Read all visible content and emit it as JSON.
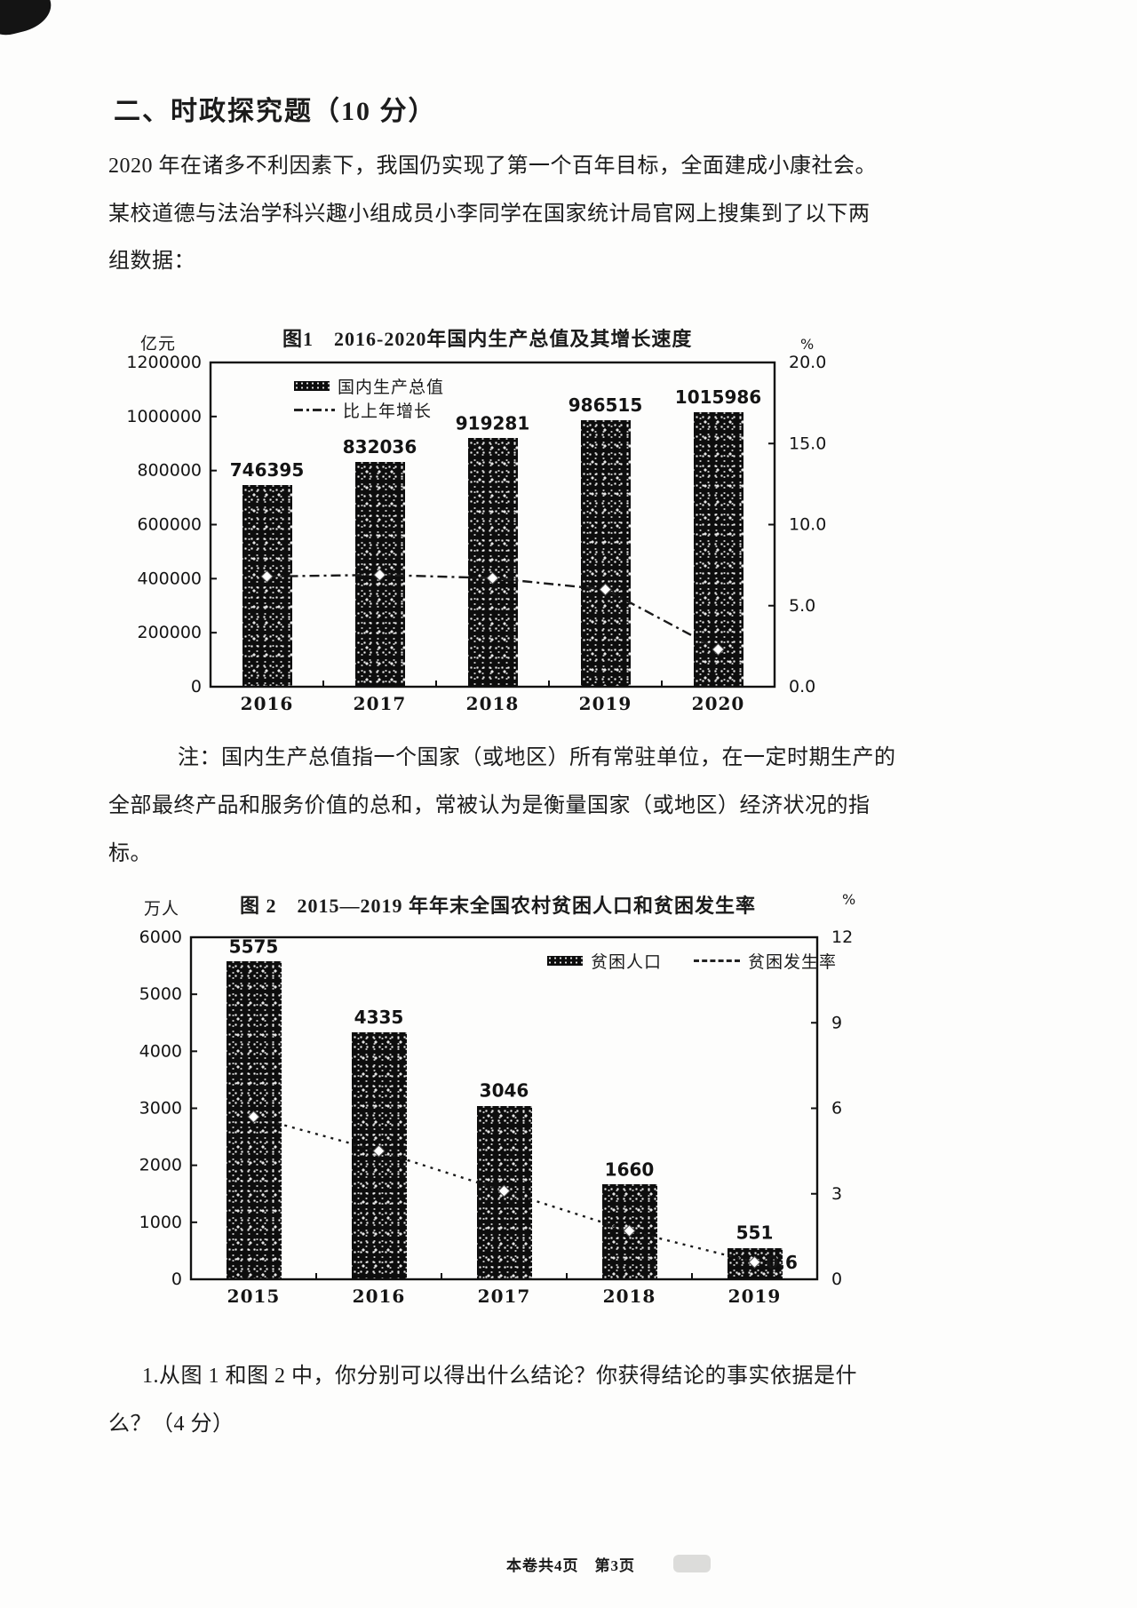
{
  "heading": "二、时政探究题（10 分）",
  "intro": {
    "line1": "2020 年在诸多不利因素下，我国仍实现了第一个百年目标，全面建成小康社会。",
    "line2": "某校道德与法治学科兴趣小组成员小李同学在国家统计局官网上搜集到了以下两",
    "line3": "组数据："
  },
  "note": {
    "line1": "注：国内生产总值指一个国家（或地区）所有常驻单位，在一定时期生产的",
    "line2": "全部最终产品和服务价值的总和，常被认为是衡量国家（或地区）经济状况的指",
    "line3": "标。"
  },
  "question": {
    "line1": "1.从图 1 和图 2 中，你分别可以得出什么结论？你获得结论的事实依据是什",
    "line2": "么？（4 分）"
  },
  "footer": "本卷共4页　第3页",
  "colors": {
    "ink": "#1b1b1b",
    "paper": "#fdfdfc"
  },
  "chart_data": [
    {
      "type": "bar",
      "title": "图1　2016-2020年国内生产总值及其增长速度",
      "categories": [
        "2016",
        "2017",
        "2018",
        "2019",
        "2020"
      ],
      "series": [
        {
          "name": "国内生产总值",
          "type": "bar",
          "axis": "left",
          "values": [
            746395,
            832036,
            919281,
            986515,
            1015986
          ],
          "labels": [
            "746395",
            "832036",
            "919281",
            "986515",
            "1015986"
          ]
        },
        {
          "name": "比上年增长",
          "type": "line",
          "axis": "right",
          "values": [
            6.8,
            6.9,
            6.7,
            6.0,
            2.3
          ]
        }
      ],
      "left_axis": {
        "unit": "亿元",
        "max": 1200000,
        "ticks": [
          "1200000",
          "1000000",
          "800000",
          "600000",
          "400000",
          "200000",
          "0"
        ]
      },
      "right_axis": {
        "unit": "%",
        "max": 20,
        "ticks": [
          "20.0",
          "15.0",
          "10.0",
          "5.0",
          "0.0"
        ]
      },
      "legend": [
        "国内生产总值",
        "比上年增长"
      ],
      "legend_position": "top-left",
      "grid": false
    },
    {
      "type": "bar",
      "title": "图 2　2015—2019 年年末全国农村贫困人口和贫困发生率",
      "categories": [
        "2015",
        "2016",
        "2017",
        "2018",
        "2019"
      ],
      "series": [
        {
          "name": "贫困人口",
          "type": "bar",
          "axis": "left",
          "values": [
            5575,
            4335,
            3046,
            1660,
            551
          ],
          "labels": [
            "5575",
            "4335",
            "3046",
            "1660",
            "551"
          ]
        },
        {
          "name": "贫困发生率",
          "type": "line",
          "axis": "right",
          "values": [
            5.7,
            4.5,
            3.1,
            1.7,
            0.6
          ],
          "point_label": {
            "index": 4,
            "text": "0.6"
          }
        }
      ],
      "left_axis": {
        "unit": "万人",
        "max": 6000,
        "ticks": [
          "6000",
          "5000",
          "4000",
          "3000",
          "2000",
          "1000",
          "0"
        ]
      },
      "right_axis": {
        "unit": "%",
        "max": 12,
        "ticks": [
          "12",
          "9",
          "6",
          "3",
          "0"
        ]
      },
      "legend": [
        "贫困人口",
        "贫困发生率"
      ],
      "legend_position": "top-right",
      "grid": false
    }
  ]
}
